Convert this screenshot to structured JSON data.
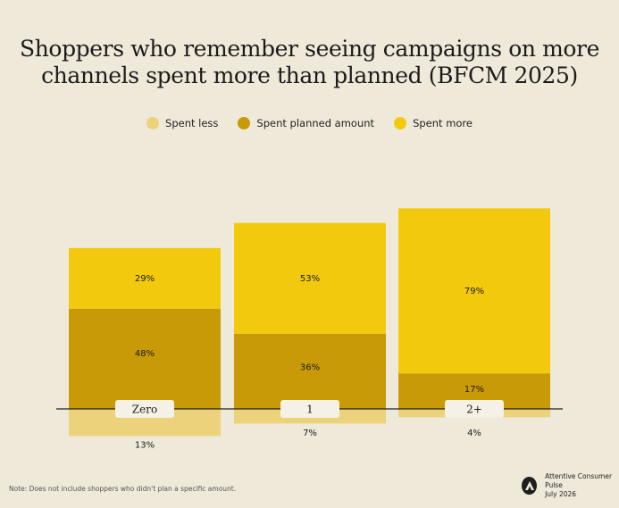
{
  "title_lines": [
    "Shoppers who remember seeing campaigns on more",
    "channels spent more than planned (BFCM 2025)"
  ],
  "colors": {
    "background": "#efe9da",
    "spent_less": "#ecd27b",
    "spent_planned": "#c99a08",
    "spent_more": "#f2c90c",
    "baseline": "#1e1e1e",
    "label_box": "#f6f1e6"
  },
  "chart_data": {
    "type": "bar",
    "stacked": true,
    "diverging": true,
    "categories": [
      "Zero",
      "1",
      "2+"
    ],
    "series": [
      {
        "name": "Spent less",
        "values": [
          13,
          7,
          4
        ],
        "direction": "below-baseline"
      },
      {
        "name": "Spent planned amount",
        "values": [
          48,
          36,
          17
        ]
      },
      {
        "name": "Spent more",
        "values": [
          29,
          53,
          79
        ]
      }
    ],
    "value_suffix": "%",
    "legend_position": "top-center"
  },
  "note": "Note: Does not include shoppers who didn't plan a specific amount.",
  "source": {
    "name": "Attentive Consumer Pulse",
    "date": "July 2026",
    "icon": "attentive-logo-icon"
  }
}
